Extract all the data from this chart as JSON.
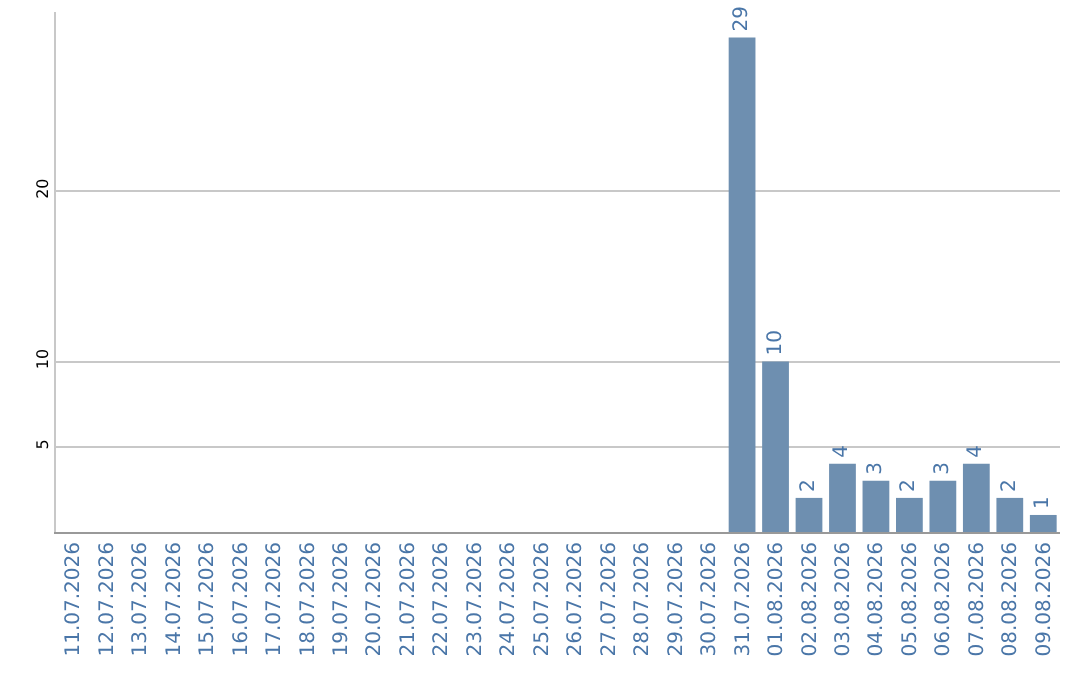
{
  "chart_data": {
    "type": "bar",
    "categories": [
      "11.07.2026",
      "12.07.2026",
      "13.07.2026",
      "14.07.2026",
      "15.07.2026",
      "16.07.2026",
      "17.07.2026",
      "18.07.2026",
      "19.07.2026",
      "20.07.2026",
      "21.07.2026",
      "22.07.2026",
      "23.07.2026",
      "24.07.2026",
      "25.07.2026",
      "26.07.2026",
      "27.07.2026",
      "28.07.2026",
      "29.07.2026",
      "30.07.2026",
      "31.07.2026",
      "01.08.2026",
      "02.08.2026",
      "03.08.2026",
      "04.08.2026",
      "05.08.2026",
      "06.08.2026",
      "07.08.2026",
      "08.08.2026",
      "09.08.2026"
    ],
    "values": [
      0,
      0,
      0,
      0,
      0,
      0,
      0,
      0,
      0,
      0,
      0,
      0,
      0,
      0,
      0,
      0,
      0,
      0,
      0,
      0,
      29,
      10,
      2,
      4,
      3,
      2,
      3,
      4,
      2,
      1
    ],
    "value_labels": [
      null,
      null,
      null,
      null,
      null,
      null,
      null,
      null,
      null,
      null,
      null,
      null,
      null,
      null,
      null,
      null,
      null,
      null,
      null,
      null,
      "29",
      "10",
      "2",
      "4",
      "3",
      "2",
      "3",
      "4",
      "2",
      "1"
    ],
    "color": "#6e8fb0",
    "ylim": [
      0,
      30.5
    ],
    "yticks": [
      5,
      10,
      20
    ],
    "grid": "y",
    "legend": false
  }
}
